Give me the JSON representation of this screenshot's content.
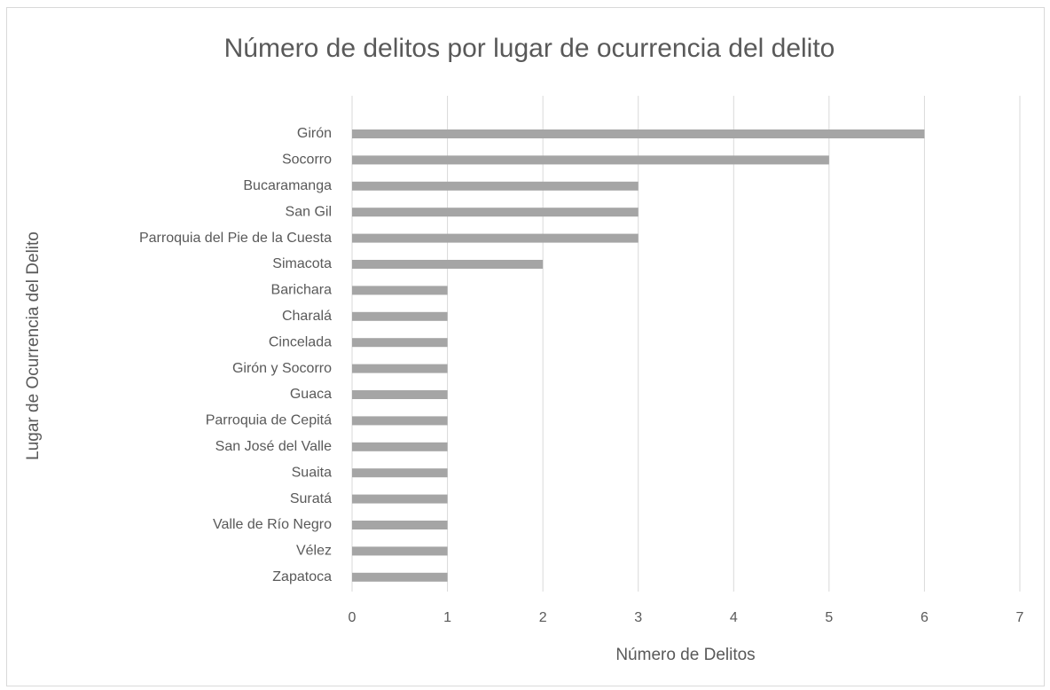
{
  "chart_data": {
    "type": "bar",
    "orientation": "horizontal",
    "title": "Número de delitos por lugar de ocurrencia del delito",
    "x_label": "Número de Delitos",
    "y_label": "Lugar de Ocurrencia del Delito",
    "categories": [
      "Girón",
      "Socorro",
      "Bucaramanga",
      "San Gil",
      "Parroquia del Pie de la Cuesta",
      "Simacota",
      "Barichara",
      "Charalá",
      "Cincelada",
      "Girón y Socorro",
      "Guaca",
      "Parroquia de Cepitá",
      "San José del Valle",
      "Suaita",
      "Suratá",
      "Valle de Río Negro",
      "Vélez",
      "Zapatoca"
    ],
    "values": [
      6,
      5,
      3,
      3,
      3,
      2,
      1,
      1,
      1,
      1,
      1,
      1,
      1,
      1,
      1,
      1,
      1,
      1
    ],
    "color": "#a5a5a5",
    "xlim": [
      0,
      7
    ],
    "xticks": [
      0,
      1,
      2,
      3,
      4,
      5,
      6,
      7
    ],
    "grid": true
  }
}
